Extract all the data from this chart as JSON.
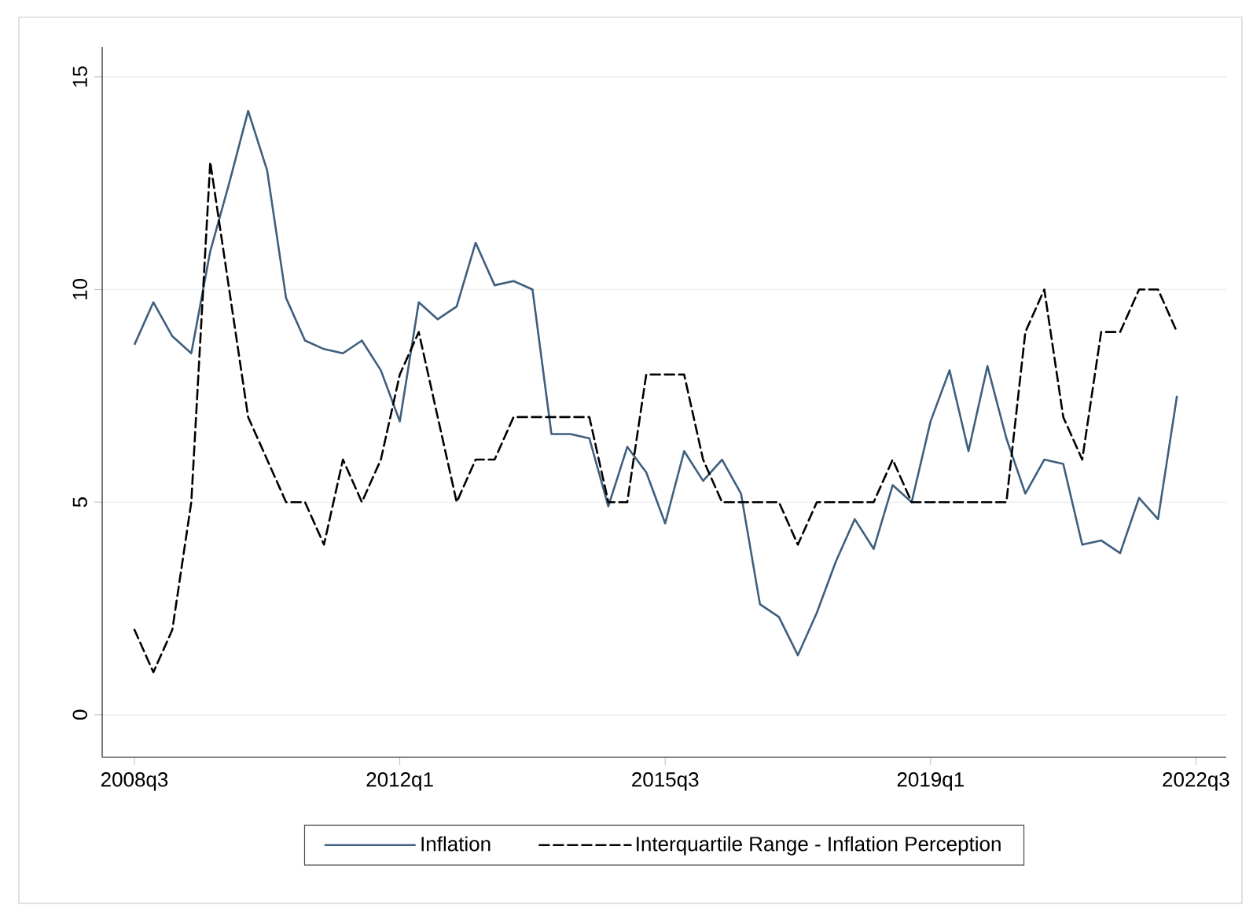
{
  "chart_data": {
    "type": "line",
    "categories": [
      "2008q3",
      null,
      null,
      null,
      null,
      null,
      null,
      null,
      null,
      null,
      null,
      null,
      null,
      null,
      "2012q1",
      null,
      null,
      null,
      null,
      null,
      null,
      null,
      null,
      null,
      null,
      null,
      null,
      null,
      "2015q3",
      null,
      null,
      null,
      null,
      null,
      null,
      null,
      null,
      null,
      null,
      null,
      null,
      null,
      "2019q1",
      null,
      null,
      null,
      null,
      null,
      null,
      null,
      null,
      null,
      null,
      null,
      null,
      null,
      "2022q3"
    ],
    "series": [
      {
        "name": "Inflation",
        "color": "#3e5f7e",
        "line_style": "solid",
        "values": [
          8.7,
          9.7,
          8.9,
          8.5,
          10.9,
          12.5,
          14.2,
          12.8,
          9.8,
          8.8,
          8.6,
          8.5,
          8.8,
          8.1,
          6.9,
          9.7,
          9.3,
          9.6,
          11.1,
          10.1,
          10.2,
          10.0,
          6.6,
          6.6,
          6.5,
          4.9,
          6.3,
          5.7,
          4.5,
          6.2,
          5.5,
          6.0,
          5.2,
          2.6,
          2.3,
          1.4,
          2.4,
          3.6,
          4.6,
          3.9,
          5.4,
          5.0,
          6.9,
          8.1,
          6.2,
          8.2,
          6.5,
          5.2,
          6.0,
          5.9,
          4.0,
          4.1,
          3.8,
          5.1,
          4.6,
          7.5,
          null
        ]
      },
      {
        "name": "Interquartile Range - Inflation Perception",
        "color": "#000000",
        "line_style": "dashed",
        "values": [
          2,
          1,
          2,
          5,
          13,
          10,
          7,
          6,
          5,
          5,
          4,
          6,
          5,
          6,
          8,
          9,
          7,
          5,
          6,
          6,
          7,
          7,
          7,
          7,
          7,
          5,
          5,
          8,
          8,
          8,
          6,
          5,
          5,
          5,
          5,
          4,
          5,
          5,
          5,
          5,
          6,
          5,
          5,
          5,
          5,
          5,
          5,
          9,
          10,
          7,
          6,
          9,
          9,
          10,
          10,
          9,
          null
        ]
      }
    ],
    "ylim": [
      -1,
      15.7
    ],
    "yticks": [
      0,
      5,
      10,
      15
    ],
    "grid": "y",
    "legend": "bottom",
    "marker": "none"
  }
}
